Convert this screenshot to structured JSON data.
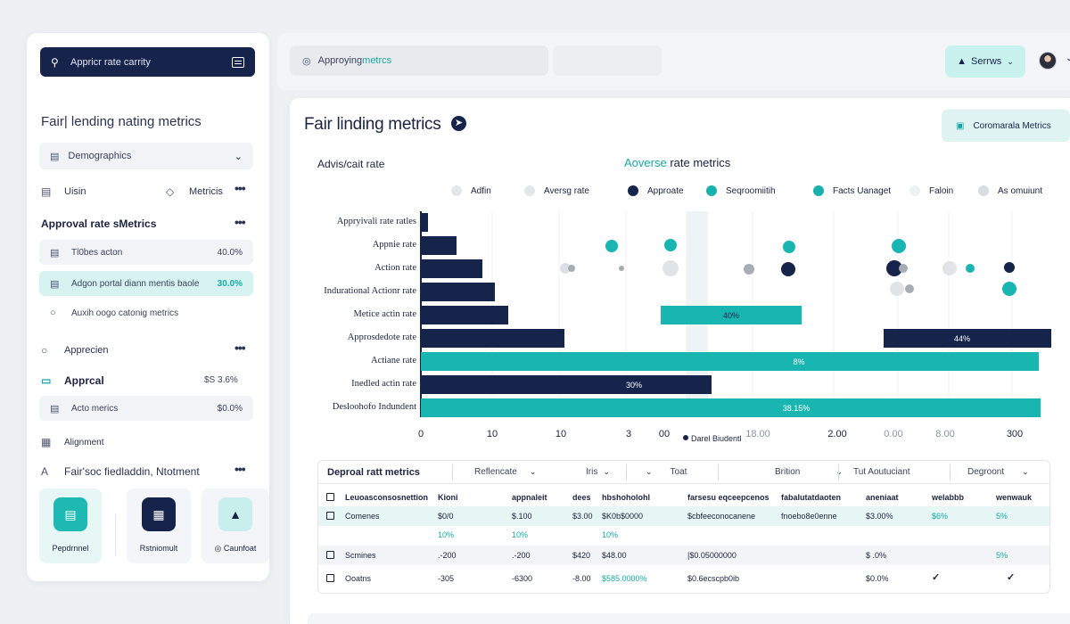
{
  "sidebar": {
    "search_value": "Appricr rate carrity",
    "section_title": "Fair| lending nating metrics",
    "dropdown": "Demographics",
    "row1": {
      "left": "Uisin",
      "right": "Metricis"
    },
    "approval_section": "Approval rate sMetrics",
    "items": [
      {
        "label": "Tl0bes acton",
        "value": "40.0%"
      },
      {
        "label": "Adgon portal diann mentis baole",
        "value": "30.0%"
      },
      {
        "label": "Auxih oogo catonig metrics",
        "value": ""
      }
    ],
    "apprecien": "Apprecien",
    "approval": {
      "label": "Apprcal",
      "value": "$S 3.6%"
    },
    "acto": {
      "label": "Acto merics",
      "value": "$0.0%"
    },
    "alignment": "Alignment",
    "fair_section": "Fair'soc fiedladdin, Ntotment",
    "tiles": [
      "Pepdrnnel",
      "Rstniomult",
      "Caunfoat"
    ]
  },
  "topbar": {
    "search_prefix": "Approying ",
    "search_highlight": "metrcs",
    "save_label": "Serrws"
  },
  "main": {
    "title": "Fair linding metrics",
    "compare_label": "Coromarala Metrics",
    "chart_left_label": "Advis/cait rate",
    "chart_title_highlight": "Aoverse",
    "chart_title_rest": " rate metrics"
  },
  "legend": [
    {
      "label": "Adfin",
      "color": "#e4e6ea"
    },
    {
      "label": "Aversg rate",
      "color": "#e4e6ea"
    },
    {
      "label": "Approate",
      "color": "#16234a"
    },
    {
      "label": "Seqroomiitih",
      "color": "#19b0ad"
    },
    {
      "label": "Facts Uanaget",
      "color": "#19b0ad"
    },
    {
      "label": "Faloin",
      "color": "#f0f1f3"
    },
    {
      "label": "As omuiunt",
      "color": "#d9dce1"
    }
  ],
  "chart_data": {
    "type": "bar",
    "orientation": "horizontal",
    "categories": [
      "Appryivali rate ratles",
      "Appnie rate",
      "Action rate",
      "Indurational Actionr rate",
      "Metice actin rate",
      "Approsdedote rate",
      "Actiane rate",
      "Inedled actin rate",
      "Desloohofo Indundent"
    ],
    "data_labels": [
      "",
      "",
      "",
      "",
      "40%",
      "44%",
      "8%",
      "30%",
      "38.15%"
    ],
    "x_ticks": [
      "0",
      "10",
      "10",
      "3",
      "00",
      "18.00",
      "2.00",
      "0.00",
      "8.00",
      "300"
    ],
    "x_legend_note": "Darel Biudentl",
    "grid": true
  },
  "table": {
    "headers": [
      "Deproal ratt metrics",
      "Reflencate",
      "Iris",
      "Toat",
      "Brition",
      "Tut Aoutuciant",
      "Degroont"
    ],
    "rows": [
      [
        "Leuoasconsosnettion",
        "Kioni",
        "appnaleit",
        "dees",
        "hbshoholohl",
        "farsesu eqceepcenos",
        "fabalutatdaoten",
        "aneniaat",
        "welabbb",
        "wenwauk"
      ],
      [
        "Comenes",
        "$0/0",
        "$.100",
        "$3.00",
        "$K0b$0000",
        "$cbfeeconocanene",
        "fnoebo8e0enne",
        "$3.00%",
        "$6%",
        "5%"
      ],
      [
        "",
        "10%",
        "10%",
        "",
        "10%",
        "",
        "",
        "",
        "",
        ""
      ],
      [
        "Scmines",
        ".-200",
        ".-200",
        "$420",
        "$48.00",
        "|$0.05000000",
        "",
        "$ .0%",
        "",
        "5%"
      ],
      [
        "Ooatns",
        "-305",
        "-6300",
        "-8.00",
        "$585.0000%",
        "$0.6ecscpb0ib",
        "",
        "$0.0%",
        "",
        ""
      ]
    ]
  }
}
